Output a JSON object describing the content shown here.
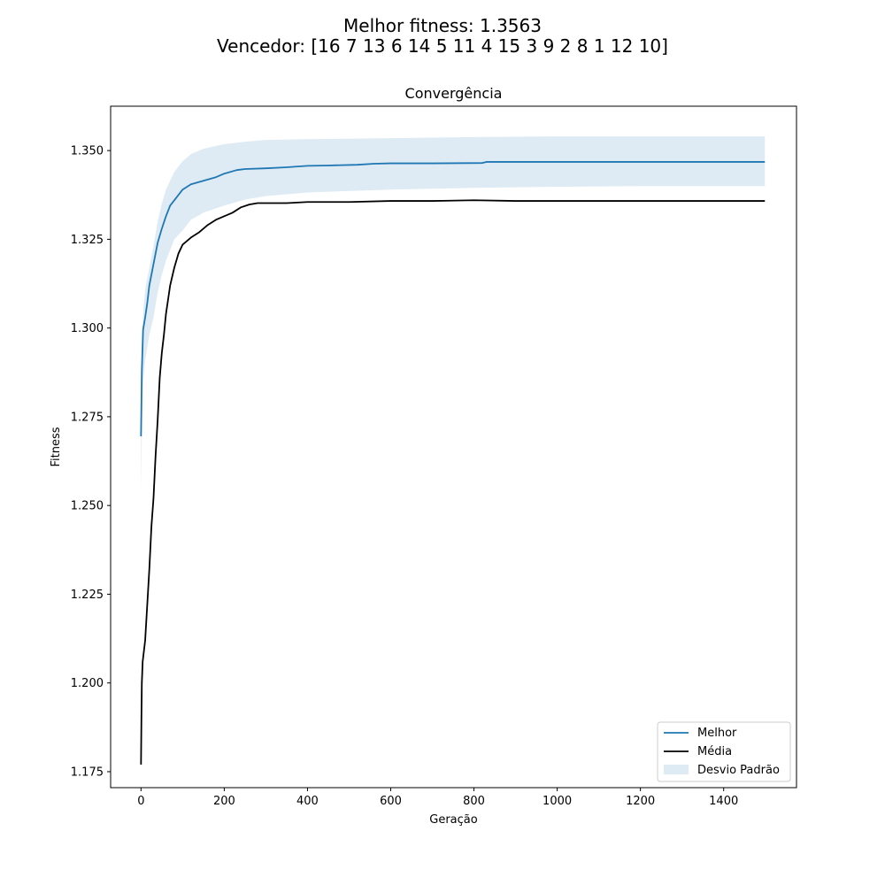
{
  "figure": {
    "suptitle_line1": "Melhor fitness: 1.3563",
    "suptitle_line2": "Vencedor: [16  7 13  6 14  5 11  4 15  3  9  2  8  1 12 10]"
  },
  "chart_data": {
    "type": "line",
    "title": "Convergência",
    "xlabel": "Geração",
    "ylabel": "Fitness",
    "xlim": [
      -73,
      1575
    ],
    "ylim": [
      1.1705,
      1.3625
    ],
    "xticks": [
      0,
      200,
      400,
      600,
      800,
      1000,
      1200,
      1400
    ],
    "yticks": [
      1.175,
      1.2,
      1.225,
      1.25,
      1.275,
      1.3,
      1.325,
      1.35
    ],
    "ytick_labels": [
      "1.175",
      "1.200",
      "1.225",
      "1.250",
      "1.275",
      "1.300",
      "1.325",
      "1.350"
    ],
    "grid": false,
    "legend_position": "lower-right",
    "series": [
      {
        "name": "Melhor",
        "color": "#1f77b4",
        "x": [
          0,
          2,
          5,
          10,
          15,
          20,
          30,
          40,
          50,
          60,
          70,
          80,
          100,
          120,
          150,
          180,
          200,
          230,
          250,
          300,
          350,
          400,
          450,
          520,
          560,
          600,
          700,
          820,
          830,
          900,
          1000,
          1100,
          1200,
          1300,
          1400,
          1499
        ],
        "y": [
          1.2695,
          1.288,
          1.2995,
          1.303,
          1.307,
          1.312,
          1.318,
          1.324,
          1.328,
          1.3315,
          1.3345,
          1.336,
          1.339,
          1.3405,
          1.3415,
          1.3425,
          1.3435,
          1.3445,
          1.3448,
          1.345,
          1.3453,
          1.3457,
          1.3458,
          1.346,
          1.3463,
          1.3464,
          1.3464,
          1.3465,
          1.3468,
          1.3468,
          1.3468,
          1.3468,
          1.3468,
          1.3468,
          1.3468,
          1.3468
        ]
      },
      {
        "name": "Média",
        "color": "#000000",
        "x": [
          0,
          1,
          2,
          4,
          6,
          10,
          15,
          20,
          25,
          30,
          35,
          40,
          45,
          50,
          55,
          60,
          65,
          70,
          80,
          90,
          100,
          120,
          140,
          160,
          180,
          200,
          220,
          240,
          260,
          280,
          300,
          350,
          400,
          500,
          600,
          700,
          800,
          900,
          1000,
          1100,
          1200,
          1300,
          1400,
          1499
        ],
        "y": [
          1.177,
          1.19,
          1.2,
          1.206,
          1.208,
          1.212,
          1.222,
          1.232,
          1.244,
          1.252,
          1.264,
          1.274,
          1.286,
          1.293,
          1.298,
          1.304,
          1.308,
          1.312,
          1.317,
          1.321,
          1.3235,
          1.3255,
          1.327,
          1.329,
          1.3305,
          1.3315,
          1.3325,
          1.334,
          1.3348,
          1.3352,
          1.3352,
          1.3352,
          1.3355,
          1.3355,
          1.3358,
          1.3358,
          1.336,
          1.3358,
          1.3358,
          1.3358,
          1.3358,
          1.3358,
          1.3358,
          1.3358
        ]
      }
    ],
    "band": {
      "name": "Desvio Padrão",
      "color": "#1f77b4",
      "x": [
        0,
        2,
        5,
        10,
        20,
        30,
        40,
        50,
        60,
        80,
        100,
        120,
        150,
        200,
        250,
        300,
        400,
        600,
        800,
        1000,
        1200,
        1499
      ],
      "upper": [
        1.273,
        1.293,
        1.304,
        1.311,
        1.317,
        1.323,
        1.33,
        1.335,
        1.339,
        1.344,
        1.347,
        1.349,
        1.3505,
        1.3518,
        1.3525,
        1.353,
        1.3532,
        1.3535,
        1.3538,
        1.354,
        1.354,
        1.354
      ],
      "lower": [
        1.254,
        1.27,
        1.284,
        1.291,
        1.298,
        1.303,
        1.31,
        1.315,
        1.319,
        1.325,
        1.3275,
        1.3305,
        1.3325,
        1.3345,
        1.3362,
        1.3372,
        1.3382,
        1.339,
        1.3395,
        1.3398,
        1.34,
        1.34
      ]
    }
  }
}
